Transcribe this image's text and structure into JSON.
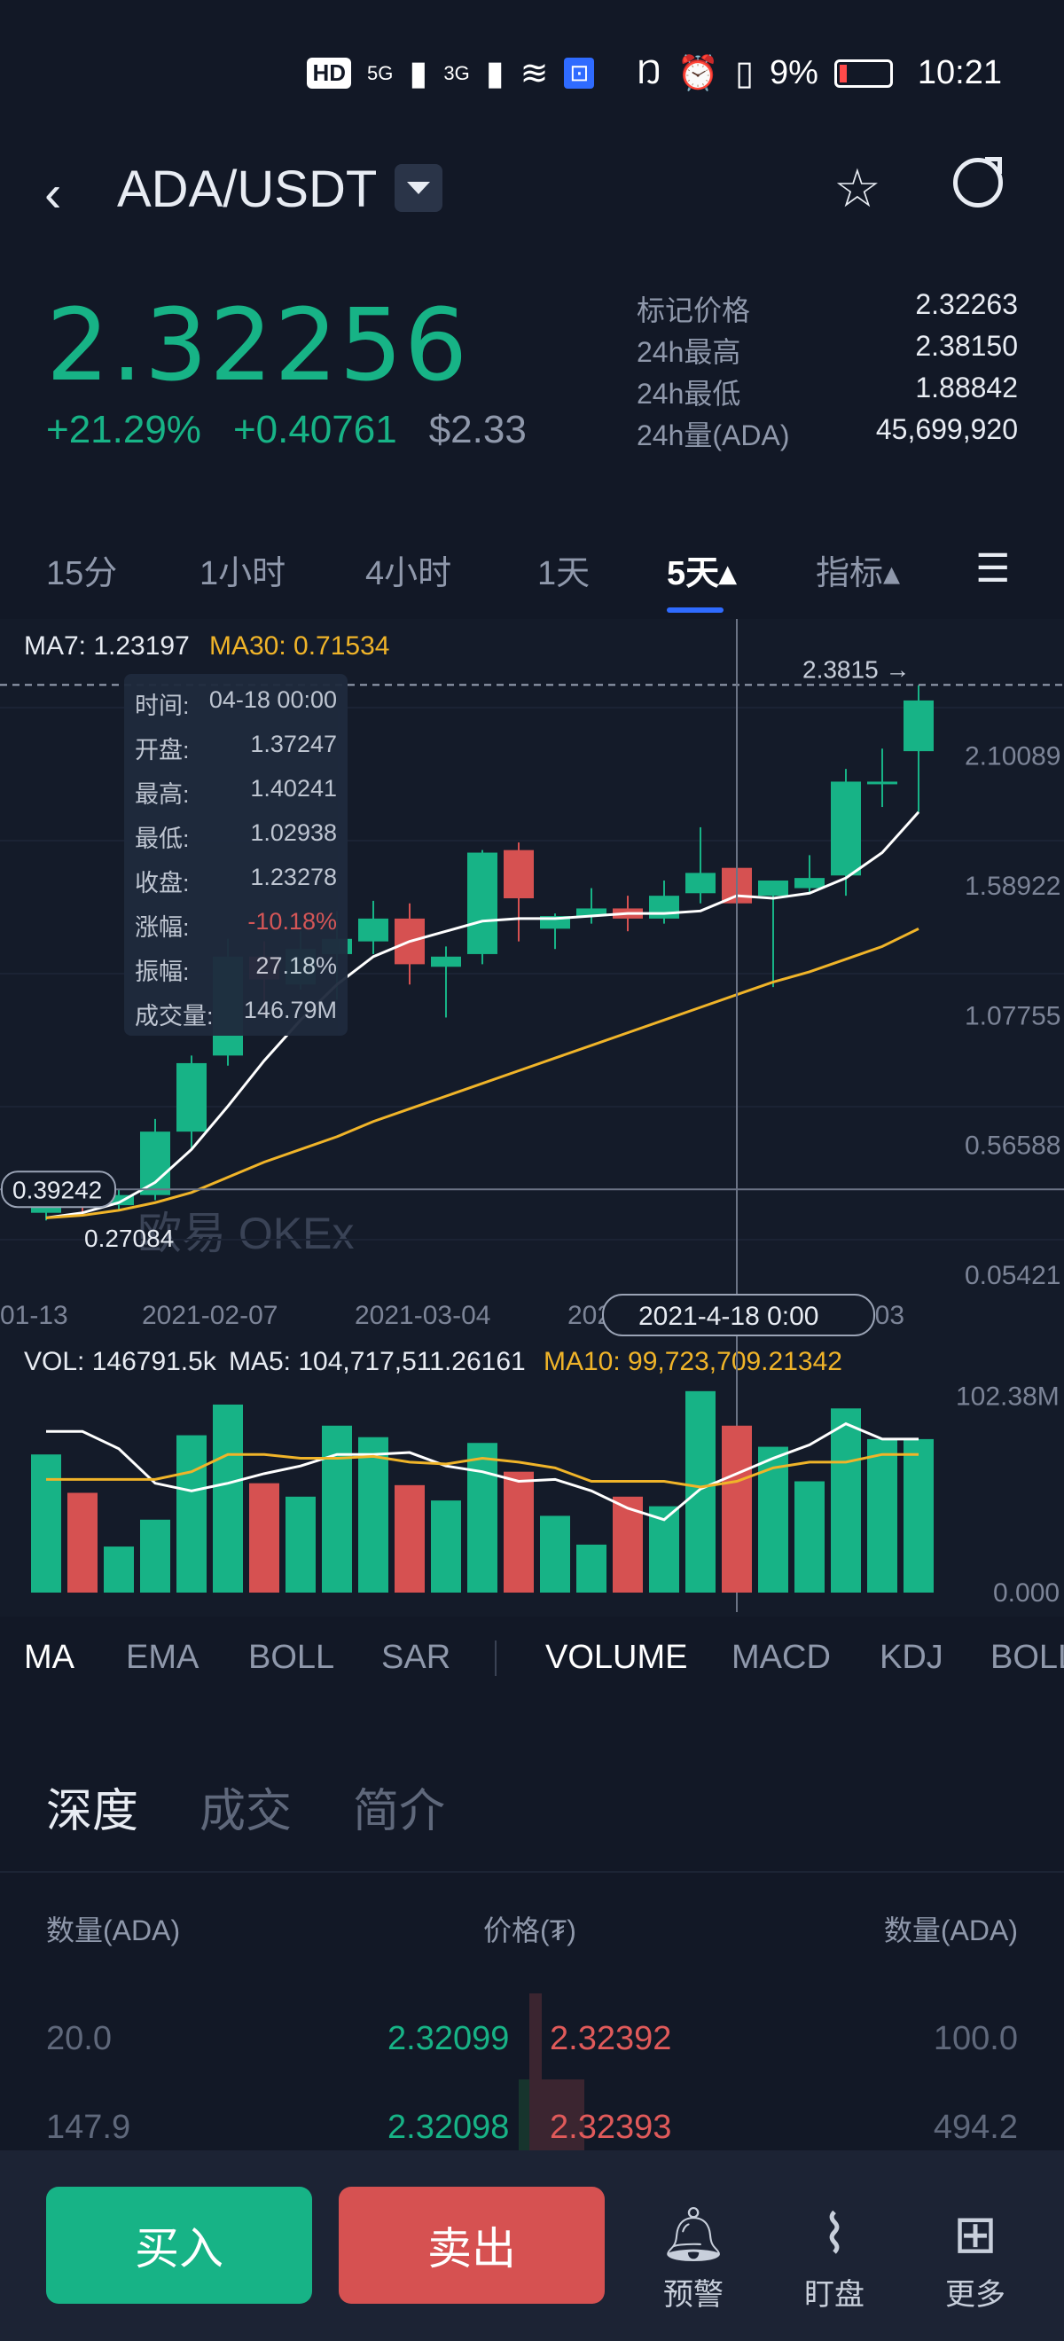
{
  "status": {
    "hd": "HD",
    "net1": "5G",
    "net2": "3G",
    "battery_pct": "9%",
    "time": "10:21",
    "icons": [
      "hd-icon",
      "signal-icon",
      "signal-icon",
      "wifi-icon",
      "hotspot-icon",
      "nfc-icon",
      "alarm-icon",
      "vibrate-icon",
      "battery-icon"
    ]
  },
  "header": {
    "back_icon": "‹",
    "pair": "ADA/USDT",
    "star_icon": "☆"
  },
  "ticker": {
    "last": "2.32256",
    "pct_change": "+21.29%",
    "abs_change": "+0.40761",
    "usd": "$2.33",
    "stats": [
      {
        "label": "标记价格",
        "value": "2.32263"
      },
      {
        "label": "24h最高",
        "value": "2.38150"
      },
      {
        "label": "24h最低",
        "value": "1.88842"
      },
      {
        "label": "24h量(ADA)",
        "value": "45,699,920"
      }
    ]
  },
  "timeframes": [
    "15分",
    "1小时",
    "4小时",
    "1天",
    "5天▴",
    "指标▴"
  ],
  "active_timeframe_index": 4,
  "chart_data": {
    "type": "candlestick",
    "ma_legend": {
      "ma7": "MA7: 1.23197",
      "ma30": "MA30: 0.71534"
    },
    "y_ticks": [
      "2.10089",
      "1.58922",
      "1.07755",
      "0.56588",
      "0.05421"
    ],
    "x_ticks": [
      "01-13",
      "2021-02-07",
      "2021-03-04",
      "202",
      "5-03"
    ],
    "crosshair_x_label": "2021-4-18  0:00",
    "crosshair_y_label": "0.39242",
    "high_marker": "2.3815 →",
    "low_marker": "0.27084",
    "watermark": "欧易 OKEx",
    "colors": {
      "up": "#17b386",
      "down": "#d65151",
      "ma7": "#ffffff",
      "ma30": "#f0b429"
    },
    "candles": [
      {
        "o": 0.3,
        "h": 0.36,
        "l": 0.27,
        "c": 0.33
      },
      {
        "o": 0.36,
        "h": 0.38,
        "l": 0.3,
        "c": 0.33
      },
      {
        "o": 0.33,
        "h": 0.39,
        "l": 0.31,
        "c": 0.37
      },
      {
        "o": 0.37,
        "h": 0.67,
        "l": 0.35,
        "c": 0.62
      },
      {
        "o": 0.62,
        "h": 0.92,
        "l": 0.55,
        "c": 0.89
      },
      {
        "o": 0.92,
        "h": 1.38,
        "l": 0.88,
        "c": 1.31
      },
      {
        "o": 1.31,
        "h": 1.37,
        "l": 1.08,
        "c": 1.22
      },
      {
        "o": 1.2,
        "h": 1.41,
        "l": 1.18,
        "c": 1.34
      },
      {
        "o": 1.32,
        "h": 1.49,
        "l": 1.14,
        "c": 1.38
      },
      {
        "o": 1.37,
        "h": 1.53,
        "l": 1.32,
        "c": 1.46
      },
      {
        "o": 1.46,
        "h": 1.52,
        "l": 1.2,
        "c": 1.28
      },
      {
        "o": 1.27,
        "h": 1.35,
        "l": 1.07,
        "c": 1.31
      },
      {
        "o": 1.32,
        "h": 1.73,
        "l": 1.28,
        "c": 1.72
      },
      {
        "o": 1.73,
        "h": 1.76,
        "l": 1.37,
        "c": 1.54
      },
      {
        "o": 1.42,
        "h": 1.48,
        "l": 1.34,
        "c": 1.47
      },
      {
        "o": 1.47,
        "h": 1.58,
        "l": 1.44,
        "c": 1.5
      },
      {
        "o": 1.5,
        "h": 1.55,
        "l": 1.41,
        "c": 1.46
      },
      {
        "o": 1.46,
        "h": 1.61,
        "l": 1.44,
        "c": 1.55
      },
      {
        "o": 1.56,
        "h": 1.82,
        "l": 1.52,
        "c": 1.64
      },
      {
        "o": 1.66,
        "h": 1.7,
        "l": 1.27,
        "c": 1.52
      },
      {
        "o": 1.55,
        "h": 1.61,
        "l": 1.19,
        "c": 1.61
      },
      {
        "o": 1.58,
        "h": 1.71,
        "l": 1.56,
        "c": 1.62
      },
      {
        "o": 1.63,
        "h": 2.05,
        "l": 1.55,
        "c": 2.0
      },
      {
        "o": 2.0,
        "h": 2.13,
        "l": 1.9,
        "c": 2.0
      },
      {
        "o": 2.12,
        "h": 2.38,
        "l": 1.88,
        "c": 2.32
      }
    ],
    "ma7": [
      0.28,
      0.3,
      0.34,
      0.42,
      0.55,
      0.72,
      0.9,
      1.06,
      1.2,
      1.31,
      1.37,
      1.41,
      1.45,
      1.46,
      1.46,
      1.47,
      1.48,
      1.48,
      1.49,
      1.55,
      1.54,
      1.56,
      1.62,
      1.72,
      1.88
    ],
    "ma30": [
      0.28,
      0.29,
      0.31,
      0.34,
      0.38,
      0.44,
      0.5,
      0.55,
      0.6,
      0.66,
      0.71,
      0.76,
      0.81,
      0.86,
      0.91,
      0.96,
      1.01,
      1.06,
      1.11,
      1.16,
      1.21,
      1.25,
      1.3,
      1.35,
      1.42
    ],
    "tooltip": [
      {
        "label": "时间:",
        "value": "04-18 00:00"
      },
      {
        "label": "开盘:",
        "value": "1.37247"
      },
      {
        "label": "最高:",
        "value": "1.40241"
      },
      {
        "label": "最低:",
        "value": "1.02938"
      },
      {
        "label": "收盘:",
        "value": "1.23278"
      },
      {
        "label": "涨幅:",
        "value": "-10.18%"
      },
      {
        "label": "振幅:",
        "value": "27.18%"
      },
      {
        "label": "成交量:",
        "value": "146.79M"
      }
    ],
    "vol_legend": {
      "vol": "VOL: 146791.5k",
      "ma5": "MA5: 104,717,511.26161",
      "ma10": "MA10: 99,723,709.21342"
    },
    "vol_ticks": [
      "102.38M",
      "0.000"
    ],
    "volume": [
      72,
      52,
      24,
      38,
      82,
      98,
      57,
      50,
      87,
      81,
      56,
      48,
      78,
      63,
      40,
      25,
      50,
      45,
      105,
      87,
      76,
      58,
      96,
      80,
      80
    ],
    "vol_ma5": [
      84,
      84,
      75,
      57,
      53,
      57,
      62,
      66,
      72,
      72,
      73,
      66,
      63,
      58,
      59,
      53,
      44,
      38,
      54,
      62,
      70,
      77,
      88,
      80,
      80
    ],
    "vol_ma10": [
      59,
      59,
      59,
      59,
      63,
      72,
      72,
      70,
      70,
      71,
      68,
      67,
      70,
      68,
      65,
      58,
      58,
      58,
      55,
      58,
      65,
      68,
      68,
      72,
      72
    ]
  },
  "indicators": {
    "main": [
      "MA",
      "EMA",
      "BOLL",
      "SAR"
    ],
    "sub": [
      "VOLUME",
      "MACD",
      "KDJ",
      "BOLL"
    ]
  },
  "depth": {
    "tabs": [
      "深度",
      "成交",
      "简介"
    ],
    "headers": {
      "left": "数量(ADA)",
      "mid": "价格(₮)",
      "right": "数量(ADA)"
    },
    "rows": [
      {
        "bid_amt": "20.0",
        "bid": "2.32099",
        "ask": "2.32392",
        "ask_amt": "100.0"
      },
      {
        "bid_amt": "147.9",
        "bid": "2.32098",
        "ask": "2.32393",
        "ask_amt": "494.2"
      }
    ]
  },
  "bottom_nav": {
    "buy": "买入",
    "sell": "卖出",
    "items": [
      {
        "label": "预警",
        "icon": "bell-icon"
      },
      {
        "label": "盯盘",
        "icon": "pulse-icon"
      },
      {
        "label": "更多",
        "icon": "grid-icon"
      }
    ]
  }
}
